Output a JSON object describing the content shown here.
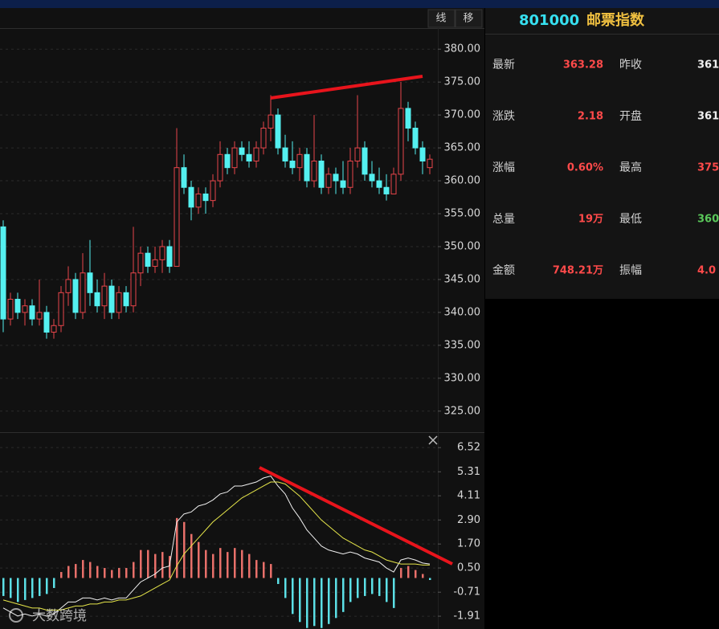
{
  "toolbar": [
    "线",
    "移"
  ],
  "quote": {
    "code": "801000",
    "name": "邮票指数",
    "rows": [
      [
        "最新",
        "363.28",
        "昨收",
        "361."
      ],
      [
        "涨跌",
        "2.18",
        "开盘",
        "361."
      ],
      [
        "涨幅",
        "0.60%",
        "最高",
        "375."
      ],
      [
        "总量",
        "19万",
        "最低",
        "360."
      ],
      [
        "金额",
        "748.21万",
        "振幅",
        "4.0"
      ]
    ]
  },
  "watermark": "大数跨境",
  "chart_data": [
    {
      "type": "candlestick",
      "up_color": "#e8454a",
      "down_color": "#54f0f0",
      "grid": true,
      "ylim": [
        321.8,
        383.2
      ],
      "yticks": [
        {
          "value": 325,
          "label": "325.00"
        },
        {
          "value": 330,
          "label": "330.00"
        },
        {
          "value": 335,
          "label": "335.00"
        },
        {
          "value": 340,
          "label": "340.00"
        },
        {
          "value": 345,
          "label": "345.00"
        },
        {
          "value": 350,
          "label": "350.00"
        },
        {
          "value": 355,
          "label": "355.00"
        },
        {
          "value": 360,
          "label": "360.00"
        },
        {
          "value": 365,
          "label": "365.00"
        },
        {
          "value": 370,
          "label": "370.00"
        },
        {
          "value": 375,
          "label": "375.00"
        },
        {
          "value": 380,
          "label": "380.00"
        }
      ],
      "ohlc": [
        [
          353,
          354,
          337,
          339
        ],
        [
          339,
          343,
          338,
          342
        ],
        [
          342,
          343,
          339,
          340
        ],
        [
          340,
          342,
          338,
          341
        ],
        [
          341,
          342,
          338,
          339
        ],
        [
          339,
          345,
          338,
          340
        ],
        [
          340,
          341,
          336,
          337
        ],
        [
          337,
          339,
          336,
          338
        ],
        [
          338,
          344,
          337,
          343
        ],
        [
          343,
          347,
          341,
          345
        ],
        [
          345,
          346,
          339,
          340
        ],
        [
          340,
          349,
          339,
          346
        ],
        [
          346,
          351,
          341,
          343
        ],
        [
          343,
          345,
          340,
          341
        ],
        [
          341,
          346,
          339,
          344
        ],
        [
          344,
          345,
          339,
          340
        ],
        [
          340,
          344,
          339,
          343
        ],
        [
          343,
          344,
          340,
          341
        ],
        [
          341,
          353,
          340,
          346
        ],
        [
          346,
          350,
          344,
          349
        ],
        [
          349,
          350,
          346,
          347
        ],
        [
          347,
          350,
          346,
          348
        ],
        [
          348,
          351,
          346,
          350
        ],
        [
          350,
          351,
          346,
          347
        ],
        [
          347,
          368,
          347,
          362
        ],
        [
          362,
          364,
          358,
          359
        ],
        [
          359,
          360,
          354,
          356
        ],
        [
          356,
          359,
          355,
          358
        ],
        [
          358,
          359,
          355,
          357
        ],
        [
          357,
          361,
          356,
          360
        ],
        [
          360,
          366,
          359,
          364
        ],
        [
          364,
          365,
          361,
          362
        ],
        [
          362,
          366,
          361,
          365
        ],
        [
          365,
          366,
          363,
          364
        ],
        [
          364,
          366,
          362,
          363
        ],
        [
          363,
          366,
          362,
          365
        ],
        [
          365,
          369,
          364,
          368
        ],
        [
          368,
          373,
          366,
          370
        ],
        [
          370,
          371,
          364,
          365
        ],
        [
          365,
          367,
          362,
          363
        ],
        [
          363,
          366,
          361,
          362
        ],
        [
          362,
          365,
          360,
          364
        ],
        [
          364,
          365,
          359,
          360
        ],
        [
          360,
          370,
          359,
          363
        ],
        [
          363,
          364,
          358,
          359
        ],
        [
          359,
          362,
          358,
          361
        ],
        [
          361,
          362,
          358,
          360
        ],
        [
          360,
          363,
          358,
          359
        ],
        [
          359,
          365,
          358,
          363
        ],
        [
          363,
          373,
          362,
          365
        ],
        [
          365,
          366,
          360,
          361
        ],
        [
          361,
          363,
          359,
          360
        ],
        [
          360,
          362,
          358,
          359
        ],
        [
          359,
          361,
          357,
          358
        ],
        [
          358,
          362,
          358,
          361
        ],
        [
          361,
          375,
          360,
          371
        ],
        [
          371,
          372,
          366,
          368
        ],
        [
          368,
          369,
          364,
          365
        ],
        [
          365,
          366,
          361,
          363
        ],
        [
          362,
          364,
          361,
          363.28
        ]
      ]
    },
    {
      "type": "macd",
      "grid": true,
      "up_color": "#e8706a",
      "down_color": "#5ce0e6",
      "dif_color": "#f0f0f0",
      "dea_color": "#e6e64a",
      "ylim": [
        -2.55,
        7.21
      ],
      "yticks": [
        -1.91,
        -0.71,
        {
          "value": 0.5,
          "label": "0.50"
        },
        {
          "value": 1.7,
          "label": "1.70"
        },
        {
          "value": 2.9,
          "label": "2.90"
        },
        4.11,
        5.31,
        6.52
      ],
      "histogram": [
        -0.9,
        -1.0,
        -1.2,
        -1.1,
        -1.0,
        -0.9,
        -0.8,
        -0.5,
        0.3,
        0.6,
        0.7,
        0.9,
        0.8,
        0.6,
        0.5,
        0.4,
        0.5,
        0.5,
        0.8,
        1.4,
        1.4,
        1.2,
        1.3,
        1.1,
        3.0,
        2.8,
        2.2,
        1.8,
        1.4,
        1.2,
        1.5,
        1.3,
        1.5,
        1.4,
        1.2,
        0.9,
        0.8,
        0.7,
        -0.3,
        -1.0,
        -1.8,
        -2.2,
        -2.5,
        -2.4,
        -2.5,
        -2.3,
        -2.0,
        -1.7,
        -1.2,
        -1.0,
        -0.9,
        -0.8,
        -0.9,
        -1.2,
        -1.5,
        0.5,
        0.6,
        0.4,
        0.2,
        -0.1
      ],
      "dif": [
        -1.5,
        -1.7,
        -1.9,
        -1.8,
        -1.9,
        -1.8,
        -1.9,
        -1.8,
        -1.5,
        -1.2,
        -1.2,
        -1.0,
        -1.0,
        -1.1,
        -1.0,
        -1.1,
        -1.0,
        -1.0,
        -0.6,
        -0.2,
        0.0,
        0.2,
        0.5,
        0.6,
        2.8,
        3.2,
        3.3,
        3.6,
        3.7,
        3.9,
        4.2,
        4.3,
        4.6,
        4.6,
        4.7,
        4.8,
        5.0,
        5.1,
        4.6,
        4.2,
        3.5,
        3.0,
        2.4,
        2.0,
        1.6,
        1.4,
        1.3,
        1.2,
        1.3,
        1.2,
        1.0,
        0.9,
        0.8,
        0.5,
        0.3,
        0.9,
        1.0,
        0.9,
        0.75,
        0.7
      ],
      "dea": [
        -1.1,
        -1.2,
        -1.3,
        -1.4,
        -1.5,
        -1.5,
        -1.6,
        -1.6,
        -1.6,
        -1.5,
        -1.4,
        -1.4,
        -1.3,
        -1.3,
        -1.2,
        -1.2,
        -1.1,
        -1.1,
        -1.0,
        -0.9,
        -0.7,
        -0.5,
        -0.3,
        -0.1,
        0.6,
        1.2,
        1.6,
        2.0,
        2.4,
        2.8,
        3.1,
        3.4,
        3.7,
        4.0,
        4.2,
        4.4,
        4.6,
        4.8,
        4.8,
        4.7,
        4.4,
        4.1,
        3.7,
        3.3,
        2.9,
        2.6,
        2.3,
        2.0,
        1.8,
        1.6,
        1.4,
        1.3,
        1.1,
        0.9,
        0.8,
        0.7,
        0.7,
        0.7,
        0.65,
        0.65
      ]
    }
  ]
}
